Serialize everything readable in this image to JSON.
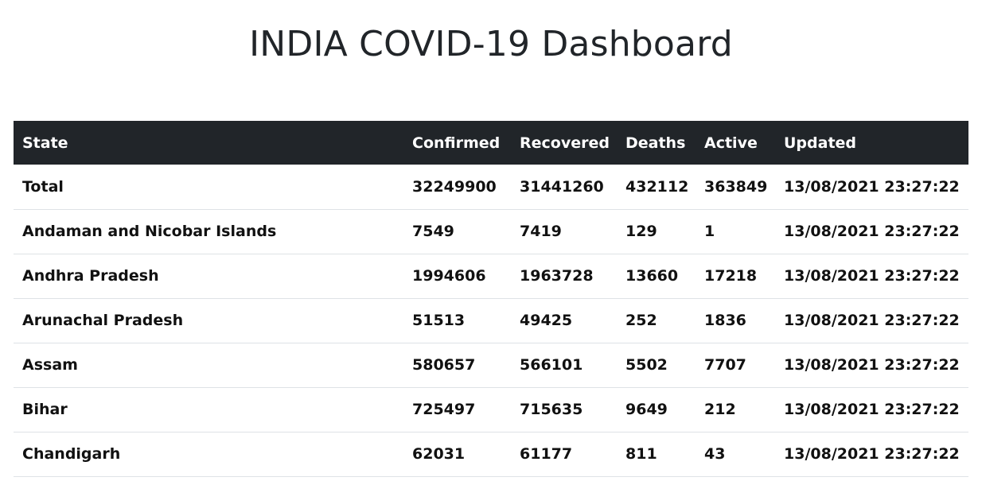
{
  "page": {
    "title": "INDIA COVID-19 Dashboard"
  },
  "table": {
    "headers": {
      "state": "State",
      "confirmed": "Confirmed",
      "recovered": "Recovered",
      "deaths": "Deaths",
      "active": "Active",
      "updated": "Updated"
    },
    "rows": [
      {
        "state": "Total",
        "confirmed": "32249900",
        "recovered": "31441260",
        "deaths": "432112",
        "active": "363849",
        "updated": "13/08/2021 23:27:22"
      },
      {
        "state": "Andaman and Nicobar Islands",
        "confirmed": "7549",
        "recovered": "7419",
        "deaths": "129",
        "active": "1",
        "updated": "13/08/2021 23:27:22"
      },
      {
        "state": "Andhra Pradesh",
        "confirmed": "1994606",
        "recovered": "1963728",
        "deaths": "13660",
        "active": "17218",
        "updated": "13/08/2021 23:27:22"
      },
      {
        "state": "Arunachal Pradesh",
        "confirmed": "51513",
        "recovered": "49425",
        "deaths": "252",
        "active": "1836",
        "updated": "13/08/2021 23:27:22"
      },
      {
        "state": "Assam",
        "confirmed": "580657",
        "recovered": "566101",
        "deaths": "5502",
        "active": "7707",
        "updated": "13/08/2021 23:27:22"
      },
      {
        "state": "Bihar",
        "confirmed": "725497",
        "recovered": "715635",
        "deaths": "9649",
        "active": "212",
        "updated": "13/08/2021 23:27:22"
      },
      {
        "state": "Chandigarh",
        "confirmed": "62031",
        "recovered": "61177",
        "deaths": "811",
        "active": "43",
        "updated": "13/08/2021 23:27:22"
      }
    ]
  },
  "colors": {
    "header_bg": "#212529",
    "header_text": "#ffffff",
    "row_border": "#dee2e6",
    "title_text": "#212529"
  }
}
